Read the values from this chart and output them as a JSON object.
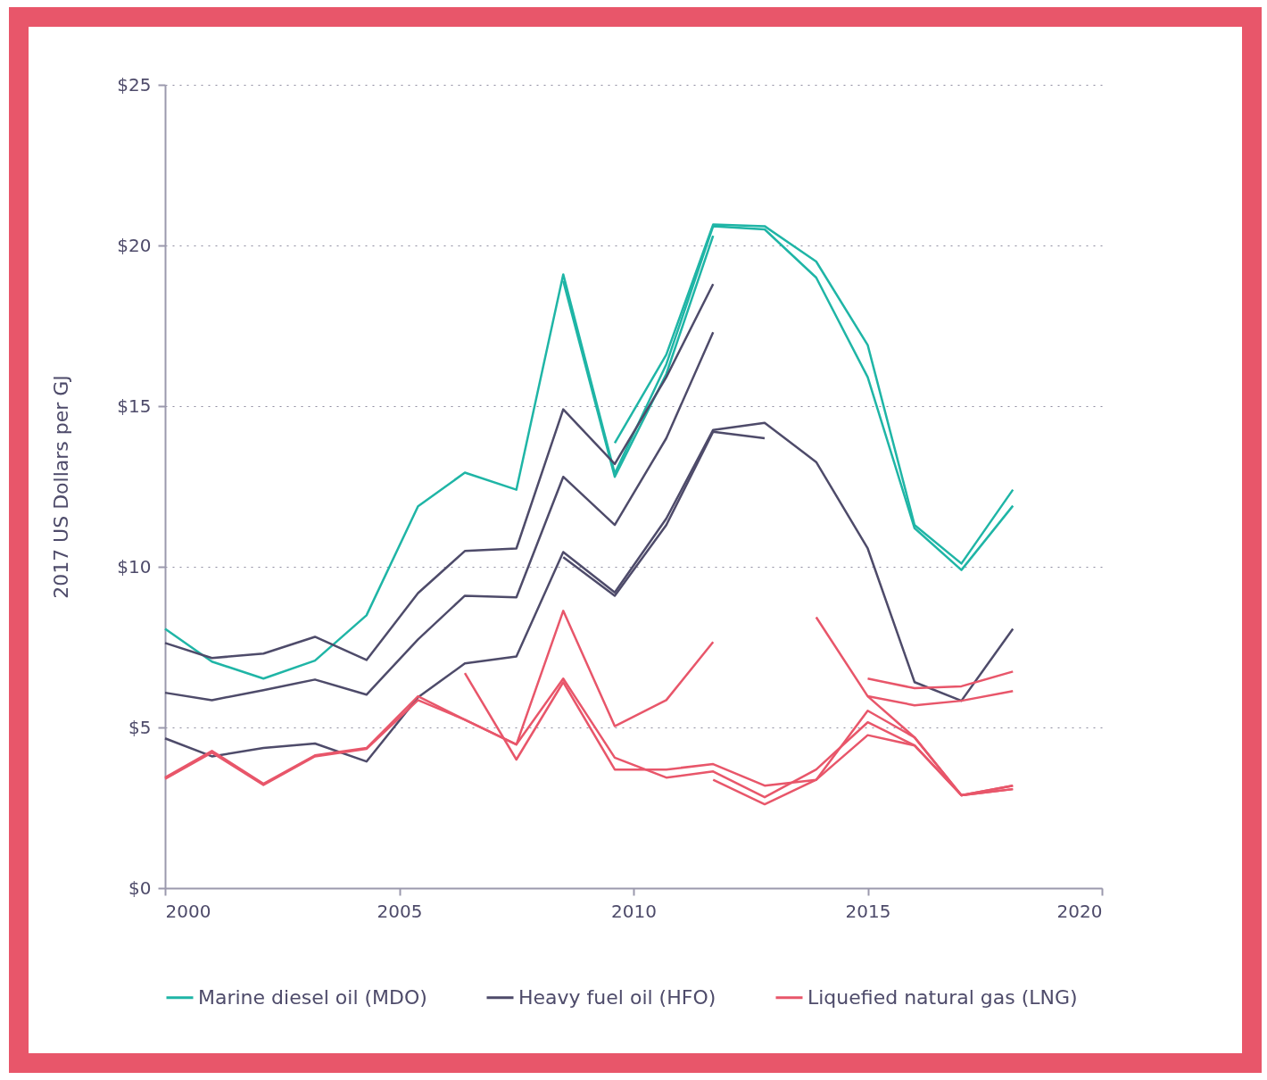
{
  "chart_data": {
    "type": "line",
    "ylabel": "2017 US Dollars per GJ",
    "xlim": [
      2000,
      2020
    ],
    "xticks": [
      2000,
      2005,
      2010,
      2015,
      2020
    ],
    "ylim": [
      0,
      25
    ],
    "yticks": [
      {
        "value": 0,
        "label": "$0"
      },
      {
        "value": 5,
        "label": "$5"
      },
      {
        "value": 10,
        "label": "$10"
      },
      {
        "value": 15,
        "label": "$15"
      },
      {
        "value": 20,
        "label": "$20"
      },
      {
        "value": 25,
        "label": "$25"
      }
    ],
    "grid": "y",
    "legend": "bottom",
    "line_style": "solid",
    "marker": "none",
    "series": [
      {
        "name": "Marine diesel oil (MDO)",
        "color": "#1fb5a6",
        "x": [
          2000,
          2001.0,
          2002.1,
          2003.2,
          2004.3,
          2005.4,
          2006.4,
          2007.5,
          2008.5,
          2009.6,
          2010.7,
          2011.7,
          2012.8,
          2013.9,
          2015.0,
          2016.0,
          2017.0,
          2018.1
        ],
        "values": [
          8.07,
          7.05,
          6.52,
          7.08,
          8.49,
          11.88,
          12.93,
          12.4,
          19.1,
          12.9,
          16.3,
          20.6,
          20.5,
          19.0,
          15.9,
          11.2,
          9.9,
          11.9
        ]
      },
      {
        "color": "#1fb5a6",
        "x": [
          2009.6,
          2010.7,
          2011.7,
          2012.8,
          2013.9,
          2015.0,
          2016.0,
          2017.0,
          2018.1
        ],
        "values": [
          13.85,
          16.6,
          20.65,
          20.6,
          19.5,
          16.9,
          11.3,
          10.1,
          12.4
        ]
      },
      {
        "color": "#1fb5a6",
        "x": [
          2008.5,
          2009.6,
          2010.7,
          2011.7
        ],
        "values": [
          18.9,
          12.8,
          16.0,
          20.3
        ]
      },
      {
        "name": "Heavy fuel oil (HFO)",
        "color": "#4e4b6a",
        "x": [
          2000,
          2001.0,
          2002.1,
          2003.2,
          2004.3,
          2005.4,
          2006.4,
          2007.5,
          2008.5,
          2009.6,
          2010.7,
          2011.7
        ],
        "values": [
          7.63,
          7.16,
          7.3,
          7.82,
          7.1,
          9.18,
          10.49,
          10.57,
          14.9,
          13.2,
          15.9,
          18.8
        ]
      },
      {
        "color": "#4e4b6a",
        "x": [
          2000,
          2001.0,
          2002.1,
          2003.2,
          2004.3,
          2005.4,
          2006.4,
          2007.5,
          2008.5,
          2009.6,
          2010.7,
          2011.7
        ],
        "values": [
          6.08,
          5.85,
          6.16,
          6.49,
          6.02,
          7.74,
          9.1,
          9.05,
          12.8,
          11.3,
          14.0,
          17.3
        ]
      },
      {
        "color": "#4e4b6a",
        "x": [
          2000,
          2001.0,
          2002.1,
          2003.2,
          2004.3,
          2005.4,
          2006.4,
          2007.5,
          2008.5,
          2009.6,
          2010.7,
          2011.7,
          2012.8,
          2013.9,
          2015.0,
          2016.0,
          2017.0,
          2018.1
        ],
        "values": [
          4.66,
          4.1,
          4.36,
          4.5,
          3.94,
          5.94,
          6.99,
          7.21,
          10.46,
          9.2,
          11.5,
          14.26,
          14.48,
          13.26,
          10.57,
          6.41,
          5.83,
          8.07
        ]
      },
      {
        "color": "#4e4b6a",
        "x": [
          2008.5,
          2009.6,
          2010.7,
          2011.7,
          2012.8
        ],
        "values": [
          10.3,
          9.1,
          11.3,
          14.2,
          14.0
        ]
      },
      {
        "name": "Liquefied natural gas (LNG)",
        "color": "#e8566a",
        "x": [
          2000,
          2001.0,
          2002.1,
          2003.2,
          2004.3,
          2005.4,
          2006.4,
          2007.5,
          2008.5,
          2009.6,
          2010.7,
          2011.7
        ],
        "values": [
          3.44,
          4.27,
          3.25,
          4.13,
          4.36,
          5.97,
          5.24,
          4.47,
          8.63,
          5.04,
          5.85,
          7.66
        ]
      },
      {
        "color": "#e8566a",
        "x": [
          2000,
          2001.0,
          2002.1,
          2003.2,
          2004.3,
          2005.4,
          2006.4,
          2007.5,
          2008.5,
          2009.6,
          2010.7,
          2011.7,
          2012.8,
          2013.9,
          2015.0,
          2016.0,
          2017.0,
          2018.1
        ],
        "values": [
          3.4,
          4.22,
          3.21,
          4.1,
          4.33,
          5.85,
          5.24,
          4.47,
          6.52,
          4.06,
          3.44,
          3.63,
          2.83,
          3.69,
          5.16,
          4.44,
          2.89,
          3.19
        ]
      },
      {
        "color": "#e8566a",
        "x": [
          2006.4,
          2007.5,
          2008.5,
          2009.6,
          2010.7,
          2011.7,
          2012.8,
          2013.9,
          2015.0,
          2016.0,
          2017.0,
          2018.1
        ],
        "values": [
          6.69,
          4.0,
          6.41,
          3.69,
          3.69,
          3.86,
          3.19,
          3.37,
          5.52,
          4.69,
          2.89,
          3.08
        ]
      },
      {
        "color": "#e8566a",
        "x": [
          2011.7,
          2012.8,
          2013.9,
          2015.0,
          2016.0,
          2017.0,
          2018.1
        ],
        "values": [
          3.37,
          2.61,
          3.37,
          4.76,
          4.44,
          2.89,
          3.08
        ]
      },
      {
        "color": "#e8566a",
        "x": [
          2013.9,
          2015.0,
          2016.0,
          2017.0,
          2018.1
        ],
        "values": [
          8.43,
          5.97,
          4.69,
          2.89,
          3.19
        ]
      },
      {
        "color": "#e8566a",
        "x": [
          2015.0,
          2016.0,
          2017.0,
          2018.1
        ],
        "values": [
          6.52,
          6.22,
          6.28,
          6.74
        ]
      },
      {
        "color": "#e8566a",
        "x": [
          2015.0,
          2016.0,
          2017.0,
          2018.1
        ],
        "values": [
          5.97,
          5.69,
          5.83,
          6.13
        ]
      }
    ]
  }
}
